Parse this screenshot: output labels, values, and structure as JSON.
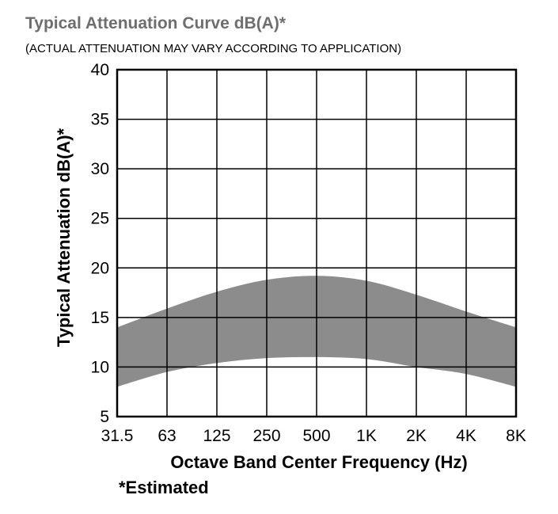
{
  "header": {
    "title": "Typical Attenuation Curve dB(A)*",
    "subtitle": "(ACTUAL ATTENUATION MAY VARY ACCORDING TO APPLICATION)"
  },
  "footnote": "*Estimated",
  "colors": {
    "band_fill": "#8c8c8c",
    "grid": "#000000",
    "title": "#6e6e6e"
  },
  "chart_data": {
    "type": "area",
    "title": "Typical Attenuation Curve dB(A)*",
    "subtitle": "(ACTUAL ATTENUATION MAY VARY ACCORDING TO APPLICATION)",
    "xlabel": "Octave Band Center Frequency (Hz)",
    "ylabel": "Typical Attenuation dB(A)*",
    "categories": [
      "31.5",
      "63",
      "125",
      "250",
      "500",
      "1K",
      "2K",
      "4K",
      "8K"
    ],
    "ylim": [
      5,
      40
    ],
    "yticks": [
      "5",
      "10",
      "15",
      "20",
      "25",
      "30",
      "35",
      "40"
    ],
    "grid": true,
    "series": [
      {
        "name": "upper bound",
        "values": [
          14,
          15.9,
          17.6,
          18.8,
          19.2,
          18.7,
          17.3,
          15.6,
          14
        ]
      },
      {
        "name": "lower bound",
        "values": [
          8,
          9.5,
          10.4,
          10.9,
          11,
          10.8,
          10,
          9.3,
          8
        ]
      }
    ]
  }
}
